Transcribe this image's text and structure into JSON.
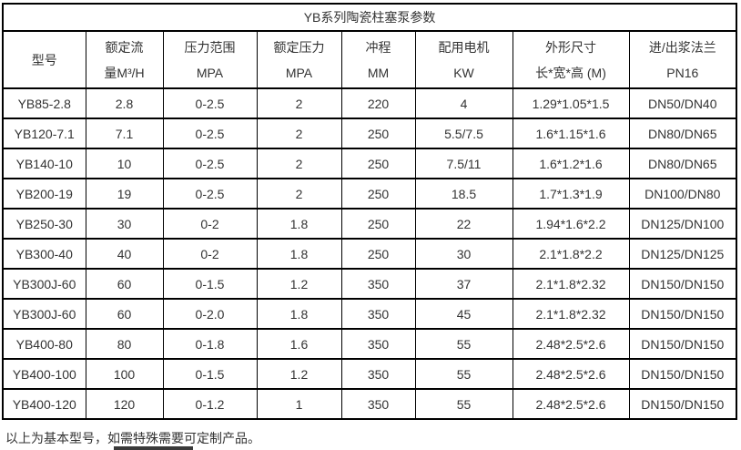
{
  "table": {
    "title": "YB系列陶瓷柱塞泵参数",
    "columns": [
      {
        "line1": "型号",
        "line2": ""
      },
      {
        "line1": "额定流",
        "line2": "量M³/H"
      },
      {
        "line1": "压力范围",
        "line2": "MPA"
      },
      {
        "line1": "额定压力",
        "line2": "MPA"
      },
      {
        "line1": "冲程",
        "line2": "MM"
      },
      {
        "line1": "配用电机",
        "line2": "KW"
      },
      {
        "line1": "外形尺寸",
        "line2": "长*宽*高 (M)"
      },
      {
        "line1": "进/出浆法兰",
        "line2": "PN16"
      }
    ],
    "rows": [
      [
        "YB85-2.8",
        "2.8",
        "0-2.5",
        "2",
        "220",
        "4",
        "1.29*1.05*1.5",
        "DN50/DN40"
      ],
      [
        "YB120-7.1",
        "7.1",
        "0-2.5",
        "2",
        "250",
        "5.5/7.5",
        "1.6*1.15*1.6",
        "DN80/DN65"
      ],
      [
        "YB140-10",
        "10",
        "0-2.5",
        "2",
        "250",
        "7.5/11",
        "1.6*1.2*1.6",
        "DN80/DN65"
      ],
      [
        "YB200-19",
        "19",
        "0-2.5",
        "2",
        "250",
        "18.5",
        "1.7*1.3*1.9",
        "DN100/DN80"
      ],
      [
        "YB250-30",
        "30",
        "0-2",
        "1.8",
        "250",
        "22",
        "1.94*1.6*2.2",
        "DN125/DN100"
      ],
      [
        "YB300-40",
        "40",
        "0-2",
        "1.8",
        "250",
        "30",
        "2.1*1.8*2.2",
        "DN125/DN125"
      ],
      [
        "YB300J-60",
        "60",
        "0-1.5",
        "1.2",
        "350",
        "37",
        "2.1*1.8*2.32",
        "DN150/DN150"
      ],
      [
        "YB300J-60",
        "60",
        "0-2.0",
        "1.8",
        "350",
        "45",
        "2.1*1.8*2.32",
        "DN150/DN150"
      ],
      [
        "YB400-80",
        "80",
        "0-1.8",
        "1.6",
        "350",
        "55",
        "2.48*2.5*2.6",
        "DN150/DN150"
      ],
      [
        "YB400-100",
        "100",
        "0-1.5",
        "1.2",
        "350",
        "55",
        "2.48*2.5*2.6",
        "DN150/DN150"
      ],
      [
        "YB400-120",
        "120",
        "0-1.2",
        "1",
        "350",
        "55",
        "2.48*2.5*2.6",
        "DN150/DN150"
      ]
    ]
  },
  "footer": {
    "note": "以上为基本型号，如需特殊需要可定制产品。"
  },
  "colors": {
    "border": "#000000",
    "text": "#333333",
    "background": "#ffffff"
  }
}
